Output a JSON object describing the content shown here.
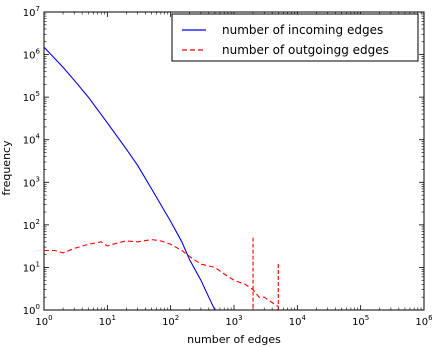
{
  "chart_data": {
    "type": "line",
    "title": "",
    "xlabel": "number of edges",
    "ylabel": "frequency",
    "xscale": "log",
    "yscale": "log",
    "xlim": [
      1,
      1000000
    ],
    "ylim": [
      1,
      10000000
    ],
    "x_ticks": [
      {
        "base": "10",
        "exp": "0"
      },
      {
        "base": "10",
        "exp": "1"
      },
      {
        "base": "10",
        "exp": "2"
      },
      {
        "base": "10",
        "exp": "3"
      },
      {
        "base": "10",
        "exp": "4"
      },
      {
        "base": "10",
        "exp": "5"
      },
      {
        "base": "10",
        "exp": "6"
      }
    ],
    "y_ticks": [
      {
        "base": "10",
        "exp": "0"
      },
      {
        "base": "10",
        "exp": "1"
      },
      {
        "base": "10",
        "exp": "2"
      },
      {
        "base": "10",
        "exp": "3"
      },
      {
        "base": "10",
        "exp": "4"
      },
      {
        "base": "10",
        "exp": "5"
      },
      {
        "base": "10",
        "exp": "6"
      },
      {
        "base": "10",
        "exp": "7"
      }
    ],
    "grid": false,
    "legend_position": "top-right",
    "series": [
      {
        "name": "number of incoming edges",
        "color": "#0000ff",
        "style": "solid",
        "x": [
          1,
          2,
          3,
          5,
          10,
          20,
          30,
          50,
          100,
          150,
          200,
          300,
          400,
          500
        ],
        "y": [
          1500000,
          500000,
          250000,
          100000,
          25000,
          6000,
          2500,
          700,
          120,
          40,
          15,
          5,
          2,
          1
        ]
      },
      {
        "name": "number of outgoingg edges",
        "color": "#ff0000",
        "style": "dashed",
        "x": [
          1,
          1.5,
          2,
          3,
          5,
          8,
          10,
          15,
          20,
          30,
          50,
          70,
          100,
          150,
          200,
          300,
          500,
          700,
          1000,
          1500,
          2000,
          2500,
          3000,
          4000,
          5000
        ],
        "y": [
          25,
          25,
          22,
          28,
          35,
          40,
          32,
          38,
          42,
          40,
          45,
          42,
          35,
          25,
          18,
          12,
          10,
          7,
          5,
          4,
          3,
          2,
          2,
          1.5,
          1.2
        ]
      }
    ],
    "spikes": [
      {
        "series": "number of outgoingg edges",
        "x": 2000,
        "y": 50
      },
      {
        "series": "number of outgoingg edges",
        "x": 5000,
        "y": 12
      }
    ]
  }
}
